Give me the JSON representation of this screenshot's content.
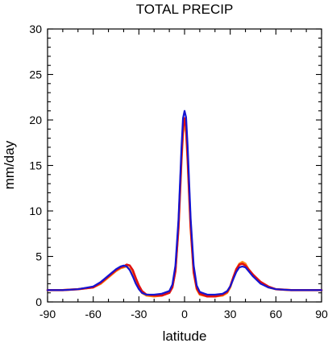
{
  "chart_data": {
    "type": "line",
    "title": "TOTAL PRECIP",
    "xlabel": "latitude",
    "ylabel": "mm/day",
    "xlim": [
      -90,
      90
    ],
    "ylim": [
      0,
      30
    ],
    "x_ticks": [
      -90,
      -60,
      -30,
      0,
      30,
      60,
      90
    ],
    "x_tick_labels": [
      "-90",
      "-60",
      "-30",
      "0",
      "30",
      "60",
      "90"
    ],
    "y_ticks": [
      0,
      5,
      10,
      15,
      20,
      25,
      30
    ],
    "y_tick_labels": [
      "0",
      "5",
      "10",
      "15",
      "20",
      "25",
      "30"
    ],
    "grid": false,
    "series": [
      {
        "color": "#ff8c1a",
        "x": [
          -90,
          -80,
          -70,
          -60,
          -55,
          -50,
          -45,
          -42,
          -40,
          -38,
          -36,
          -34,
          -32,
          -30,
          -28,
          -25,
          -20,
          -15,
          -10,
          -8,
          -6,
          -4,
          -2,
          -1,
          0,
          1,
          2,
          4,
          6,
          8,
          10,
          15,
          20,
          25,
          28,
          30,
          32,
          34,
          36,
          38,
          40,
          42,
          45,
          50,
          55,
          60,
          70,
          80,
          90
        ],
        "values": [
          1.3,
          1.3,
          1.4,
          1.6,
          2.0,
          2.7,
          3.4,
          3.7,
          3.8,
          3.9,
          3.6,
          3.0,
          2.2,
          1.5,
          1.0,
          0.7,
          0.6,
          0.7,
          1.0,
          1.6,
          3.4,
          8.0,
          15.5,
          18.5,
          19.8,
          18.6,
          15.5,
          8.0,
          3.2,
          1.4,
          0.8,
          0.6,
          0.6,
          0.7,
          1.0,
          1.6,
          2.6,
          3.6,
          4.2,
          4.4,
          4.2,
          3.6,
          2.9,
          2.1,
          1.6,
          1.4,
          1.3,
          1.3,
          1.3
        ]
      },
      {
        "color": "#e01010",
        "x": [
          -90,
          -80,
          -70,
          -60,
          -55,
          -50,
          -45,
          -42,
          -40,
          -38,
          -36,
          -34,
          -32,
          -30,
          -28,
          -25,
          -20,
          -15,
          -10,
          -8,
          -6,
          -4,
          -2,
          -1,
          0,
          1,
          2,
          4,
          6,
          8,
          10,
          15,
          20,
          25,
          28,
          30,
          32,
          34,
          36,
          38,
          40,
          42,
          45,
          50,
          55,
          60,
          70,
          80,
          90
        ],
        "values": [
          1.3,
          1.3,
          1.4,
          1.6,
          2.1,
          2.8,
          3.5,
          3.8,
          3.9,
          4.1,
          4.0,
          3.5,
          2.6,
          1.8,
          1.2,
          0.8,
          0.7,
          0.7,
          1.0,
          1.6,
          3.4,
          8.2,
          16.0,
          19.0,
          20.2,
          19.2,
          16.0,
          8.3,
          3.3,
          1.5,
          0.9,
          0.6,
          0.6,
          0.8,
          1.1,
          1.7,
          2.7,
          3.6,
          4.1,
          4.2,
          4.0,
          3.6,
          3.0,
          2.2,
          1.7,
          1.4,
          1.3,
          1.3,
          1.3
        ]
      },
      {
        "color": "#1414d2",
        "x": [
          -90,
          -80,
          -70,
          -60,
          -55,
          -50,
          -45,
          -42,
          -40,
          -38,
          -36,
          -34,
          -32,
          -30,
          -28,
          -25,
          -20,
          -15,
          -10,
          -8,
          -6,
          -4,
          -2,
          -1,
          0,
          1,
          2,
          4,
          6,
          8,
          10,
          15,
          20,
          25,
          28,
          30,
          32,
          34,
          36,
          38,
          40,
          42,
          45,
          50,
          55,
          60,
          70,
          80,
          90
        ],
        "values": [
          1.3,
          1.3,
          1.4,
          1.7,
          2.2,
          2.9,
          3.6,
          3.9,
          4.0,
          3.9,
          3.5,
          2.8,
          2.0,
          1.4,
          1.0,
          0.8,
          0.8,
          0.9,
          1.2,
          1.9,
          4.0,
          9.0,
          17.0,
          20.2,
          21.0,
          20.3,
          17.2,
          9.2,
          4.0,
          1.8,
          1.1,
          0.8,
          0.8,
          0.9,
          1.2,
          1.7,
          2.5,
          3.3,
          3.8,
          3.9,
          3.8,
          3.4,
          2.8,
          2.0,
          1.6,
          1.4,
          1.3,
          1.3,
          1.3
        ]
      }
    ]
  }
}
